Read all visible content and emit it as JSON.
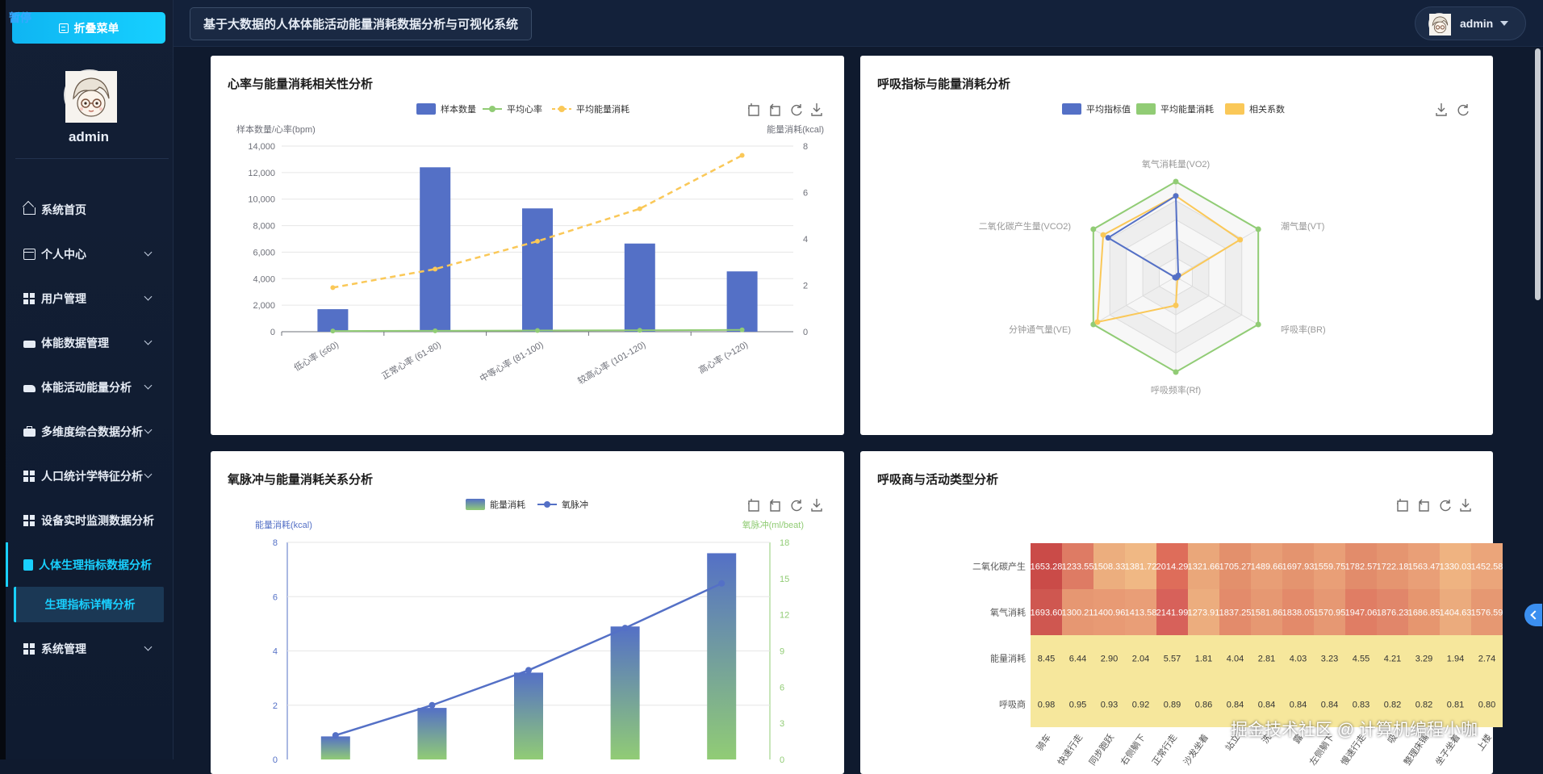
{
  "overlay": {
    "pause_label": "暂停"
  },
  "sidebar": {
    "collapse_label": "折叠菜单",
    "username": "admin",
    "items": [
      {
        "label": "系统首页",
        "icon": "home-icon",
        "expandable": false
      },
      {
        "label": "个人中心",
        "icon": "id-card-icon",
        "expandable": true
      },
      {
        "label": "用户管理",
        "icon": "grid-icon",
        "expandable": true
      },
      {
        "label": "体能数据管理",
        "icon": "truck-icon",
        "expandable": true
      },
      {
        "label": "体能活动能量分析",
        "icon": "thumbs-up-icon",
        "expandable": true
      },
      {
        "label": "多维度综合数据分析",
        "icon": "briefcase-icon",
        "expandable": true
      },
      {
        "label": "人口统计学特征分析",
        "icon": "grid-icon",
        "expandable": true
      },
      {
        "label": "设备实时监测数据分析",
        "icon": "grid-icon",
        "expandable": false
      },
      {
        "label": "人体生理指标数据分析",
        "icon": "clipboard-icon",
        "expandable": false,
        "active": true
      },
      {
        "label": "系统管理",
        "icon": "grid-icon",
        "expandable": true
      }
    ],
    "sub_item": "生理指标详情分析"
  },
  "header": {
    "title": "基于大数据的人体体能活动能量消耗数据分析与可视化系统",
    "username": "admin"
  },
  "watermark": "掘金技术社区 @ 计算机编程小咖",
  "colors": {
    "accent": "#19d0ff",
    "bar_blue": "#5470c6",
    "green": "#91cc75",
    "yellow": "#fac858"
  },
  "panels": {
    "p1": {
      "title": "心率与能量消耗相关性分析"
    },
    "p2": {
      "title": "呼吸指标与能量消耗分析"
    },
    "p3": {
      "title": "氧脉冲与能量消耗关系分析"
    },
    "p4": {
      "title": "呼吸商与活动类型分析"
    }
  },
  "chart_data": [
    {
      "type": "bar",
      "title": "心率与能量消耗相关性分析",
      "ylabel": "样本数量/心率(bpm)",
      "y2label": "能量消耗(kcal)",
      "ylim": [
        0,
        14000
      ],
      "yticks": [
        "0",
        "2,000",
        "4,000",
        "6,000",
        "8,000",
        "10,000",
        "12,000",
        "14,000"
      ],
      "y2lim": [
        0,
        8
      ],
      "y2ticks": [
        "0",
        "2",
        "4",
        "6",
        "8"
      ],
      "categories": [
        "低心率 (≤60)",
        "正常心率 (61-80)",
        "中等心率 (81-100)",
        "较高心率 (101-120)",
        "高心率 (>120)"
      ],
      "series": [
        {
          "name": "样本数量",
          "kind": "bar",
          "values": [
            1700,
            12400,
            9300,
            6650,
            4550
          ]
        },
        {
          "name": "平均心率",
          "kind": "line",
          "values": [
            55,
            72,
            90,
            110,
            135
          ]
        },
        {
          "name": "平均能量消耗",
          "kind": "dashed-line",
          "axis": "right",
          "values": [
            1.9,
            2.7,
            3.9,
            5.3,
            7.6
          ]
        }
      ],
      "legend": "top-center"
    },
    {
      "type": "radar",
      "title": "呼吸指标与能量消耗分析",
      "indicators": [
        "氧气消耗量(VO2)",
        "潮气量(VT)",
        "呼吸率(BR)",
        "呼吸频率(Rf)",
        "分钟通气量(VE)",
        "二氧化碳产生量(VCO2)"
      ],
      "series": [
        {
          "name": "平均指标值",
          "values": [
            0.85,
            0.03,
            0.01,
            0.01,
            0.01,
            0.82
          ]
        },
        {
          "name": "平均能量消耗",
          "values": [
            1.0,
            1.0,
            1.0,
            1.0,
            1.0,
            1.0
          ]
        },
        {
          "name": "相关系数",
          "values": [
            0.85,
            0.78,
            0.02,
            0.3,
            0.95,
            0.88
          ]
        }
      ],
      "legend": "top-center"
    },
    {
      "type": "bar",
      "title": "氧脉冲与能量消耗关系分析",
      "ylabel": "能量消耗(kcal)",
      "y2label": "氧脉冲(ml/beat)",
      "ylim": [
        0,
        8
      ],
      "yticks": [
        "0",
        "2",
        "4",
        "6",
        "8"
      ],
      "y2lim": [
        0,
        18
      ],
      "y2ticks": [
        "0",
        "3",
        "6",
        "9",
        "12",
        "15",
        "18"
      ],
      "categories": [
        "",
        "",
        "",
        "",
        ""
      ],
      "series": [
        {
          "name": "能量消耗",
          "kind": "bar",
          "values": [
            0.85,
            1.9,
            3.2,
            4.9,
            7.6
          ]
        },
        {
          "name": "氧脉冲",
          "kind": "line",
          "axis": "right",
          "values": [
            2.0,
            4.5,
            7.4,
            10.9,
            14.6
          ]
        }
      ],
      "legend": "top-center"
    },
    {
      "type": "heatmap",
      "title": "呼吸商与活动类型分析",
      "rows": [
        "二氧化碳产生",
        "氧气消耗",
        "能量消耗",
        "呼吸商"
      ],
      "columns": [
        "骑车",
        "快速行走",
        "同步跑跃",
        "右侧躺下",
        "正常行走",
        "沙发坐着",
        "站立",
        "洗",
        "露",
        "左侧躺下",
        "慢速行走",
        "吸",
        "整理床铺",
        "坐子坐着",
        "上楼"
      ],
      "values": [
        [
          "1653.28",
          "1233.55",
          "1508.33",
          "1381.72",
          "2014.29",
          "1321.66",
          "1705.27",
          "1489.66",
          "1697.93",
          "1559.75",
          "1782.57",
          "1722.18",
          "1563.47",
          "1330.03",
          "1452.58"
        ],
        [
          "1693.60",
          "1300.21",
          "1400.96",
          "1413.58",
          "2141.99",
          "1273.91",
          "1837.25",
          "1581.86",
          "1838.05",
          "1570.95",
          "1947.06",
          "1876.23",
          "1686.85",
          "1404.63",
          "1576.59"
        ],
        [
          "8.45",
          "6.44",
          "2.90",
          "2.04",
          "5.57",
          "1.81",
          "4.04",
          "2.81",
          "4.03",
          "3.23",
          "4.55",
          "4.21",
          "3.29",
          "1.94",
          "2.74"
        ],
        [
          "0.98",
          "0.95",
          "0.93",
          "0.92",
          "0.89",
          "0.86",
          "0.84",
          "0.84",
          "0.84",
          "0.84",
          "0.83",
          "0.82",
          "0.82",
          "0.81",
          "0.80"
        ]
      ]
    }
  ]
}
